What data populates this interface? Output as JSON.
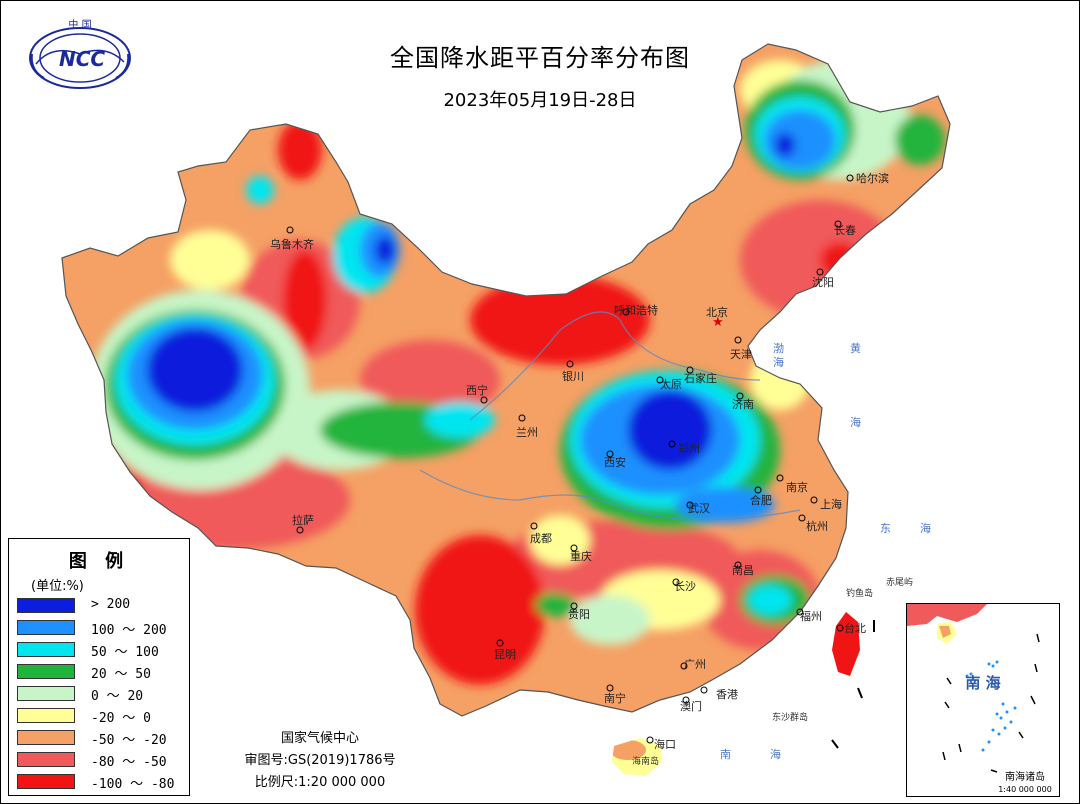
{
  "header": {
    "title": "全国降水距平百分率分布图",
    "subtitle": "2023年05月19日-28日"
  },
  "logo": {
    "top_text": "中 国",
    "mark": "NCC"
  },
  "legend": {
    "title": "图 例",
    "unit": "(单位:%)",
    "items": [
      {
        "label": "> 200",
        "color": "#0a1edc"
      },
      {
        "label": "100 ～ 200",
        "color": "#1e90ff"
      },
      {
        "label": "50 ～ 100",
        "color": "#00e6f0"
      },
      {
        "label": "20 ～ 50",
        "color": "#20b43c"
      },
      {
        "label": "0 ～ 20",
        "color": "#c8f5c8"
      },
      {
        "label": "-20 ～ 0",
        "color": "#ffff96"
      },
      {
        "label": "-50 ～ -20",
        "color": "#f5a064"
      },
      {
        "label": "-80 ～ -50",
        "color": "#f05a5a"
      },
      {
        "label": "-100 ～ -80",
        "color": "#f01414"
      }
    ]
  },
  "credits": {
    "org": "国家气候中心",
    "review_no": "审图号:GS(2019)1786号",
    "scale": "比例尺:1:20 000 000"
  },
  "cities": {
    "harbin": "哈尔滨",
    "changchun": "长春",
    "shenyang": "沈阳",
    "beijing": "北京",
    "tianjin": "天津",
    "shijiazhuang": "石家庄",
    "taiyuan": "太原",
    "jinan": "济南",
    "hohhot": "呼和浩特",
    "urumqi": "乌鲁木齐",
    "xining": "西宁",
    "lanzhou": "兰州",
    "yinchuan": "银川",
    "xian": "西安",
    "zhengzhou": "郑州",
    "wuhan": "武汉",
    "hefei": "合肥",
    "nanjing": "南京",
    "shanghai": "上海",
    "hangzhou": "杭州",
    "lhasa": "拉萨",
    "chengdu": "成都",
    "chongqing": "重庆",
    "changsha": "长沙",
    "nanchang": "南昌",
    "fuzhou": "福州",
    "taibei": "台北",
    "guiyang": "贵阳",
    "kunming": "昆明",
    "guangzhou": "广州",
    "nanning": "南宁",
    "hongkong": "香港",
    "macau": "澳门",
    "haikou": "海口"
  },
  "seas": {
    "bohai": "渤",
    "bohai2": "海",
    "yellow1": "黄",
    "yellow2": "海",
    "east1": "东",
    "east2": "海",
    "south1": "南",
    "south2": "海"
  },
  "islands": {
    "diaoyu": "钓鱼岛",
    "chiwei": "赤尾屿",
    "dongsha": "东沙群岛",
    "hainan": "海南岛"
  },
  "inset": {
    "sea": "南 海",
    "title": "南海诸岛",
    "scale": "1:40 000 000"
  }
}
